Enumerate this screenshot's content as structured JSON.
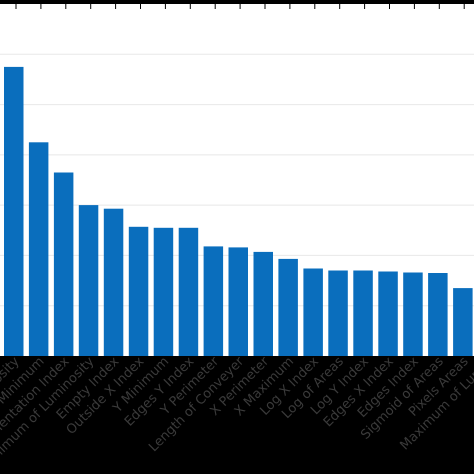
{
  "chart_data": {
    "type": "bar",
    "title": "",
    "xlabel": "",
    "ylabel": "",
    "grid": true,
    "bar_color": "#0a6ebd",
    "tick_label_color": "#3a3a3a",
    "frame_color": "#000000",
    "background_label_band": "#000000",
    "categories": [
      "...osity",
      "Y Minimum",
      "Orientation Index",
      "Minimum of Luminosity",
      "Empty Index",
      "Outside X Index",
      "Y Minimum",
      "Edges Y Index",
      "Y Perimeter",
      "Length of Conveyer",
      "X Perimeter",
      "X Maximum",
      "Log X Index",
      "Log of Areas",
      "Log Y Index",
      "Edges X Index",
      "Edges Index",
      "Sigmoid of Areas",
      "Pixels Areas",
      "Maximum of Lum..."
    ],
    "values": [
      5.75,
      4.25,
      3.65,
      3.0,
      2.93,
      2.57,
      2.55,
      2.55,
      2.18,
      2.16,
      2.07,
      1.93,
      1.74,
      1.7,
      1.7,
      1.68,
      1.66,
      1.65,
      1.35,
      1.1
    ],
    "ylim": [
      0,
      7
    ]
  }
}
